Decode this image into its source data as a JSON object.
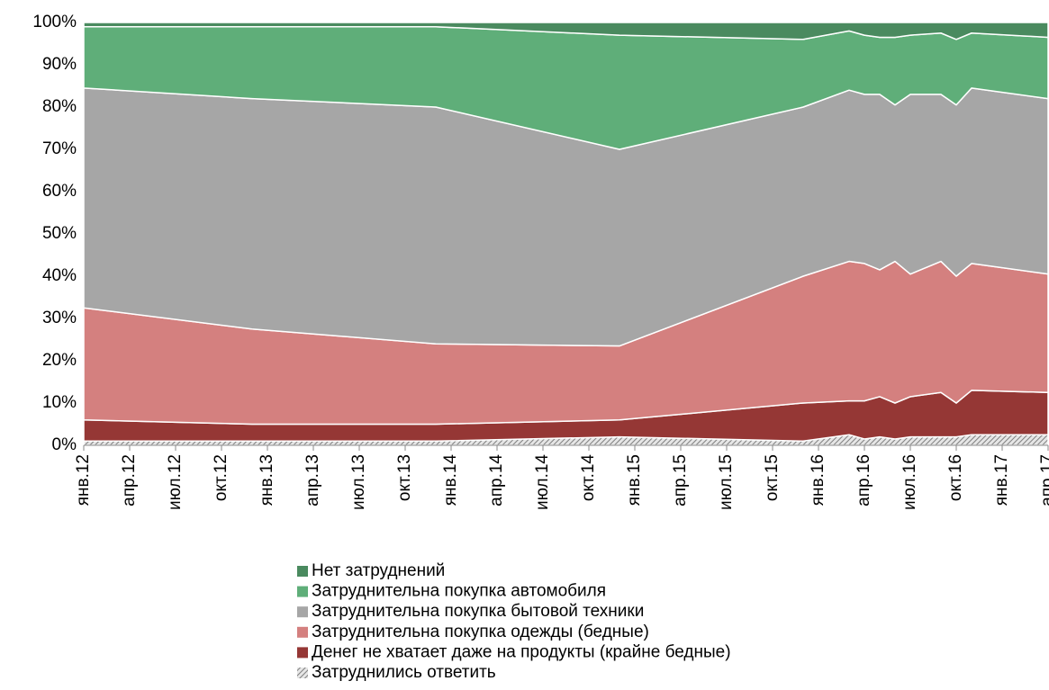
{
  "chart_data": {
    "type": "stacked_area",
    "x": [
      "2012-01",
      "2012-12",
      "2013-12",
      "2014-12",
      "2015-12",
      "2016-03",
      "2016-04",
      "2016-05",
      "2016-06",
      "2016-07",
      "2016-09",
      "2016-10",
      "2016-11",
      "2017-04"
    ],
    "xlim": [
      "2012-01",
      "2017-04"
    ],
    "xticks": [
      {
        "value": "2012-01",
        "label": "янв.12"
      },
      {
        "value": "2012-04",
        "label": "апр.12"
      },
      {
        "value": "2012-07",
        "label": "июл.12"
      },
      {
        "value": "2012-10",
        "label": "окт.12"
      },
      {
        "value": "2013-01",
        "label": "янв.13"
      },
      {
        "value": "2013-04",
        "label": "апр.13"
      },
      {
        "value": "2013-07",
        "label": "июл.13"
      },
      {
        "value": "2013-10",
        "label": "окт.13"
      },
      {
        "value": "2014-01",
        "label": "янв.14"
      },
      {
        "value": "2014-04",
        "label": "апр.14"
      },
      {
        "value": "2014-07",
        "label": "июл.14"
      },
      {
        "value": "2014-10",
        "label": "окт.14"
      },
      {
        "value": "2015-01",
        "label": "янв.15"
      },
      {
        "value": "2015-04",
        "label": "апр.15"
      },
      {
        "value": "2015-07",
        "label": "июл.15"
      },
      {
        "value": "2015-10",
        "label": "окт.15"
      },
      {
        "value": "2016-01",
        "label": "янв.16"
      },
      {
        "value": "2016-04",
        "label": "апр.16"
      },
      {
        "value": "2016-07",
        "label": "июл.16"
      },
      {
        "value": "2016-10",
        "label": "окт.16"
      },
      {
        "value": "2017-01",
        "label": "янв.17"
      },
      {
        "value": "2017-04",
        "label": "апр.17"
      }
    ],
    "ylim": [
      0,
      100
    ],
    "yticks": [
      {
        "value": 0,
        "label": "0%"
      },
      {
        "value": 10,
        "label": "10%"
      },
      {
        "value": 20,
        "label": "20%"
      },
      {
        "value": 30,
        "label": "30%"
      },
      {
        "value": 40,
        "label": "40%"
      },
      {
        "value": 50,
        "label": "50%"
      },
      {
        "value": 60,
        "label": "60%"
      },
      {
        "value": 70,
        "label": "70%"
      },
      {
        "value": 80,
        "label": "80%"
      },
      {
        "value": 90,
        "label": "90%"
      },
      {
        "value": 100,
        "label": "100%"
      }
    ],
    "legend": "bottom",
    "series": [
      {
        "name": "Затруднились ответить",
        "color": "#a0a0a0",
        "pattern": "hatch",
        "values": [
          1,
          1,
          1,
          2,
          1,
          2.5,
          1.5,
          2,
          1.5,
          2,
          2,
          2,
          2.5,
          2.5
        ]
      },
      {
        "name": "Денег не хватает даже на продукты (крайне бедные)",
        "color": "#953735",
        "values": [
          5,
          4,
          4,
          4,
          9,
          8,
          9,
          9.5,
          8.5,
          9.5,
          10.5,
          8,
          10.5,
          10
        ]
      },
      {
        "name": "Затруднительна покупка одежды (бедные)",
        "color": "#d4807f",
        "values": [
          26.5,
          22.5,
          19,
          17.5,
          30,
          33,
          32.5,
          30,
          33.5,
          29,
          31,
          30,
          30,
          28
        ]
      },
      {
        "name": "Затруднительна покупка бытовой техники",
        "color": "#a6a6a6",
        "values": [
          52,
          54.5,
          56,
          46.5,
          40,
          40.5,
          40,
          41.5,
          37,
          42.5,
          39.5,
          40.5,
          41.5,
          41.5
        ]
      },
      {
        "name": "Затруднительна покупка автомобиля",
        "color": "#5fae79",
        "values": [
          14.5,
          17,
          19,
          27,
          16,
          14,
          14,
          13.5,
          16,
          14,
          14.5,
          15.5,
          13,
          14.5
        ]
      },
      {
        "name": "Нет затруднений",
        "color": "#4a8a5f",
        "values": [
          1,
          1,
          1,
          3,
          4,
          2,
          3,
          3.5,
          3.5,
          3,
          2.5,
          4,
          2.5,
          3.5
        ]
      }
    ]
  }
}
